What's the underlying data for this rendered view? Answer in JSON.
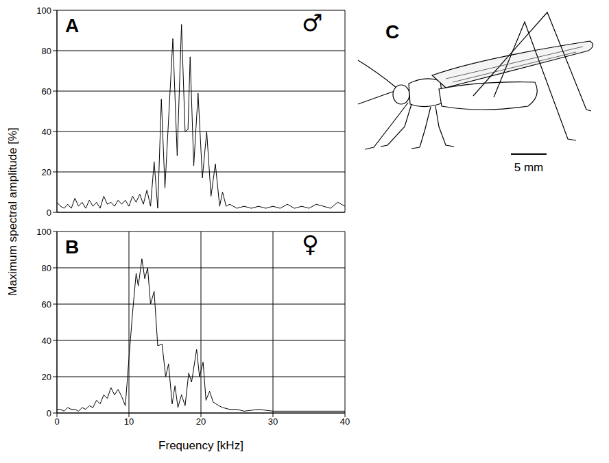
{
  "chart_data": [
    {
      "type": "line",
      "panel": "A",
      "annotation": "♂",
      "y_label": "Maximum spectral amplitude [%]",
      "color": "#000000",
      "grid": true,
      "tick_labels": "y",
      "xlim": [
        0,
        40
      ],
      "xticks": [
        0,
        10,
        20,
        30,
        40
      ],
      "ylim": [
        0,
        100
      ],
      "yticks": [
        0,
        20,
        40,
        60,
        80,
        100
      ],
      "x": [
        0,
        0.5,
        1,
        1.5,
        2,
        2.5,
        3,
        3.5,
        4,
        4.5,
        5,
        5.5,
        6,
        6.5,
        7,
        7.5,
        8,
        8.5,
        9,
        9.5,
        10,
        10.5,
        11,
        11.5,
        12,
        12.5,
        13,
        13.5,
        14,
        14.5,
        15,
        16.1,
        16.7,
        17.3,
        17.8,
        18.2,
        18.5,
        19,
        19.6,
        20.2,
        20.8,
        21.4,
        22,
        22.6,
        23,
        23.5,
        24,
        25,
        26,
        27,
        28,
        29,
        30,
        31,
        32,
        33,
        34,
        35,
        36,
        37,
        38,
        39,
        40
      ],
      "values": [
        5,
        3,
        2,
        4,
        2,
        7,
        3,
        5,
        2,
        6,
        3,
        5,
        2,
        8,
        4,
        5,
        3,
        6,
        4,
        6,
        3,
        8,
        5,
        9,
        4,
        11,
        3,
        25,
        2,
        56,
        12,
        86,
        28,
        93,
        40,
        41,
        77,
        23,
        59,
        17,
        40,
        8,
        24,
        3,
        10,
        3,
        4,
        2,
        3,
        2,
        3,
        2,
        3,
        2,
        4,
        2,
        3,
        2,
        4,
        3,
        2,
        5,
        3
      ]
    },
    {
      "type": "line",
      "panel": "B",
      "annotation": "♀",
      "x_label": "Frequency [kHz]",
      "color": "#000000",
      "grid": true,
      "xlim": [
        0,
        40
      ],
      "xticks": [
        0,
        10,
        20,
        30,
        40
      ],
      "ylim": [
        0,
        100
      ],
      "yticks": [
        0,
        20,
        40,
        60,
        80,
        100
      ],
      "x": [
        0,
        0.5,
        1,
        1.5,
        2,
        2.5,
        3,
        3.5,
        4,
        4.5,
        5,
        5.5,
        6,
        6.5,
        7,
        7.5,
        8,
        8.5,
        9,
        9.5,
        10,
        10.5,
        11,
        11.3,
        11.8,
        12.2,
        12.6,
        13,
        13.5,
        14,
        14.6,
        15.1,
        15.5,
        16,
        16.4,
        16.8,
        17.3,
        17.8,
        18.3,
        18.7,
        19.4,
        19.8,
        20.3,
        20.7,
        21.2,
        21.7,
        22.5,
        23,
        24,
        25,
        26,
        28,
        30,
        32,
        34,
        36,
        38,
        40
      ],
      "values": [
        2,
        2,
        1,
        3,
        2,
        2,
        1,
        3,
        2,
        4,
        3,
        7,
        5,
        10,
        8,
        14,
        10,
        13,
        9,
        4,
        30,
        55,
        77,
        70,
        85,
        74,
        80,
        60,
        67,
        37,
        38,
        20,
        27,
        5,
        15,
        3,
        10,
        4,
        22,
        17,
        35,
        20,
        28,
        7,
        12,
        6,
        4,
        3,
        2,
        2,
        1,
        2,
        1,
        1,
        1,
        1,
        1,
        1
      ]
    }
  ],
  "illustration": {
    "panel": "C",
    "scale_bar": "5 mm"
  }
}
